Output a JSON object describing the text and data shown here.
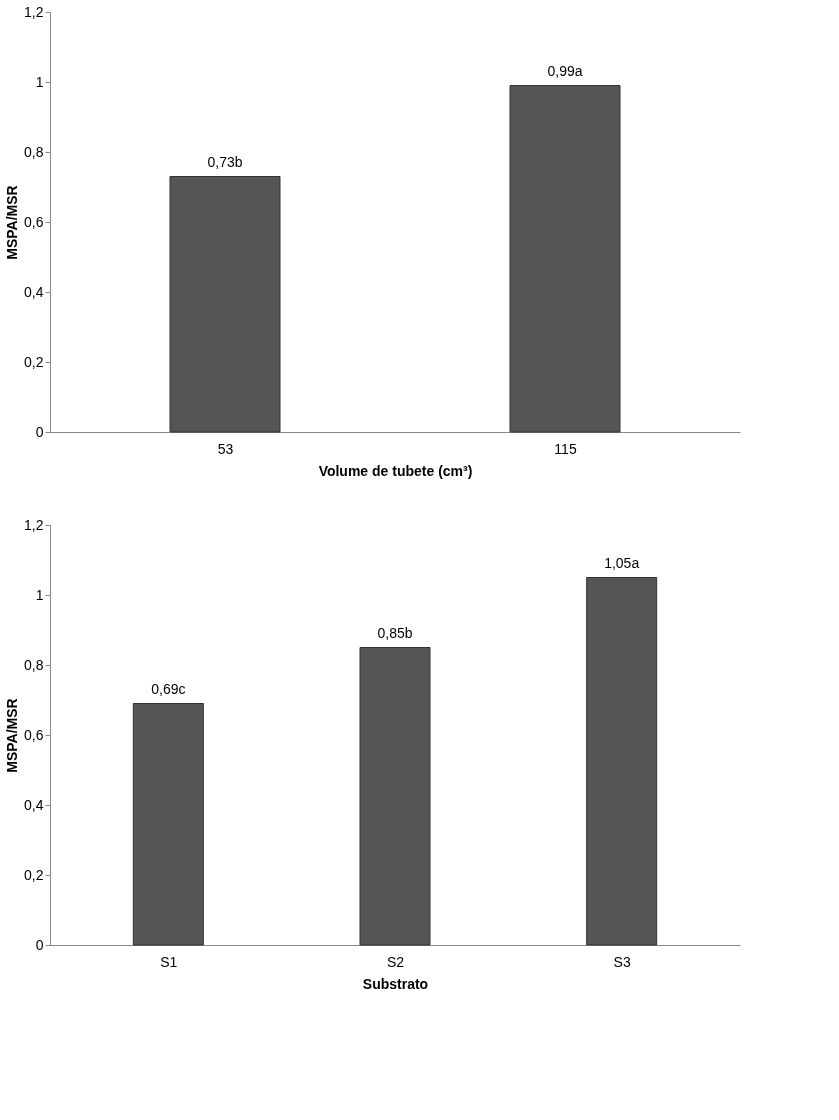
{
  "chart_data": [
    {
      "type": "bar",
      "categories": [
        "53",
        "115"
      ],
      "values": [
        0.73,
        0.99
      ],
      "color": "#555555",
      "value_labels": [
        "0,73b",
        "0,99a"
      ],
      "xlabel": "Volume de tubete (cm³)",
      "ylabel": "MSPA/MSR",
      "ylim": [
        0,
        1.2
      ],
      "yticks": [
        0,
        {
          "value": 0.2,
          "label": "0,2"
        },
        {
          "value": 0.4,
          "label": "0,4"
        },
        {
          "value": 0.6,
          "label": "0,6"
        },
        {
          "value": 0.8,
          "label": "0,8"
        },
        1,
        {
          "value": 1.2,
          "label": "1,2"
        }
      ],
      "grid": false
    },
    {
      "type": "bar",
      "categories": [
        "S1",
        "S2",
        "S3"
      ],
      "values": [
        0.69,
        0.85,
        1.05
      ],
      "color": "#555555",
      "value_labels": [
        "0,69c",
        "0,85b",
        "1,05a"
      ],
      "xlabel": "Substrato",
      "ylabel": "MSPA/MSR",
      "ylim": [
        0,
        1.2
      ],
      "yticks": [
        0,
        {
          "value": 0.2,
          "label": "0,2"
        },
        {
          "value": 0.4,
          "label": "0,4"
        },
        {
          "value": 0.6,
          "label": "0,6"
        },
        {
          "value": 0.8,
          "label": "0,8"
        },
        1,
        {
          "value": 1.2,
          "label": "1,2"
        }
      ],
      "grid": false
    }
  ]
}
